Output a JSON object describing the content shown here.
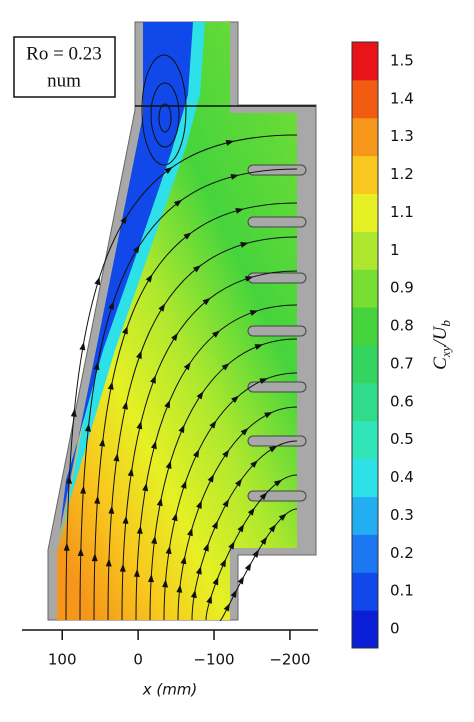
{
  "chart_data": {
    "type": "contour",
    "annotation": [
      "Ro = 0.23",
      "num"
    ],
    "xlabel": "x (mm)",
    "xlim": [
      153,
      -237
    ],
    "xticks": [
      100,
      0,
      {
        "value": -100,
        "label": "−100"
      },
      {
        "value": -200,
        "label": "−200"
      }
    ],
    "colorbar": {
      "label": [
        "C",
        "xy",
        "/U",
        "b"
      ],
      "levels": [
        0,
        0.1,
        0.2,
        0.3,
        0.4,
        0.5,
        0.6,
        0.7,
        0.8,
        0.9,
        1,
        1.1,
        1.2,
        1.3,
        1.4,
        1.5
      ],
      "colors": [
        "#0a1ed6",
        "#1048ea",
        "#1c78f2",
        "#24aef2",
        "#2ee0e8",
        "#30e6b8",
        "#30dc8a",
        "#34d460",
        "#46d43c",
        "#78de34",
        "#aee82e",
        "#e6f024",
        "#f8c81e",
        "#f6961a",
        "#f25c12",
        "#e8141a"
      ]
    }
  }
}
